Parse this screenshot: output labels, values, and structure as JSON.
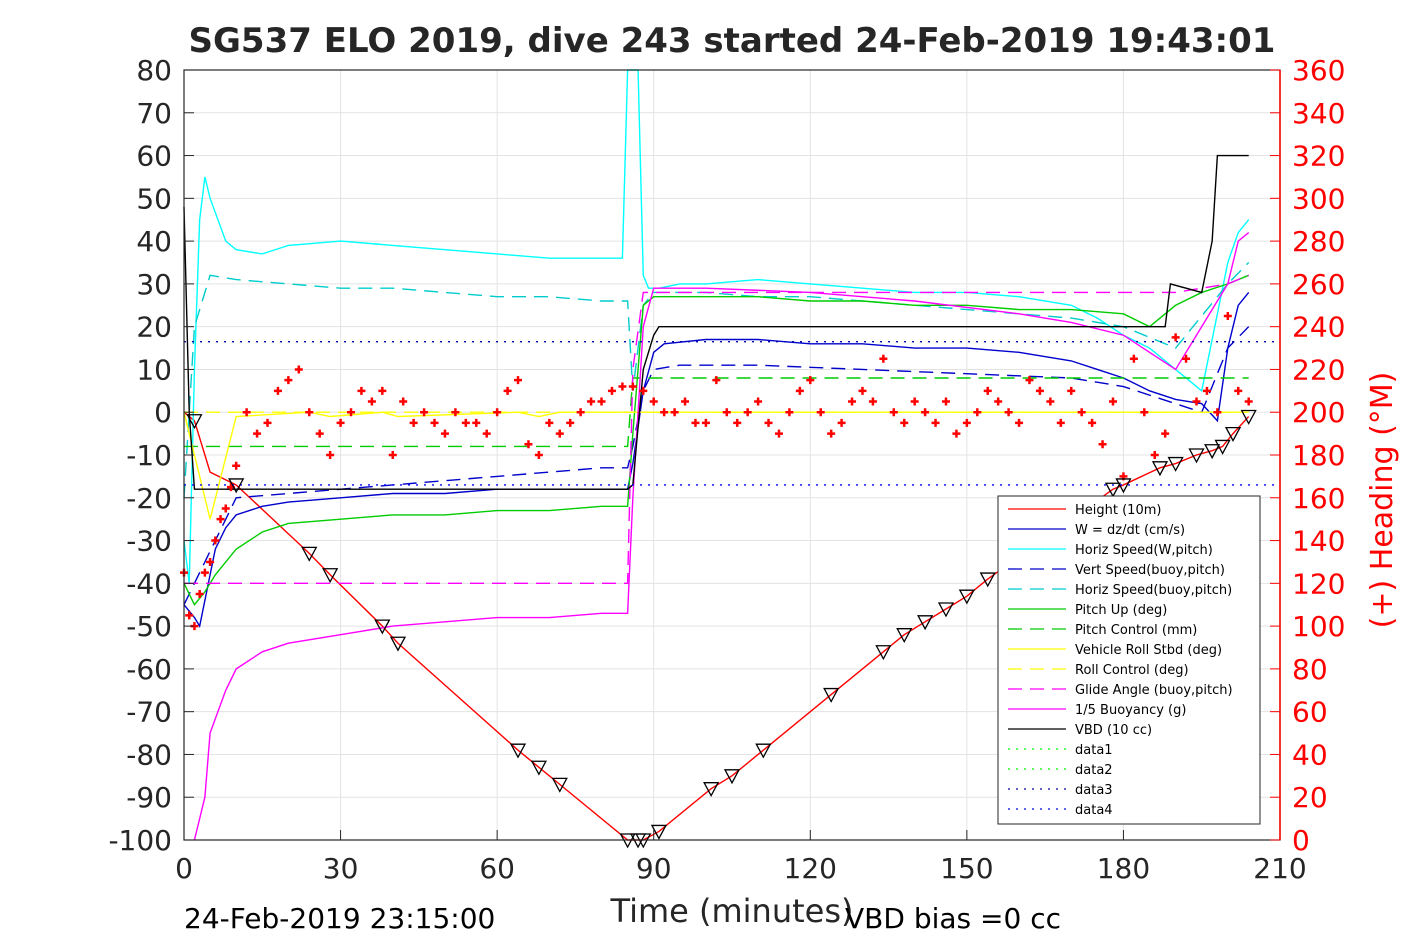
{
  "chart_data": {
    "type": "line",
    "title": "SG537 ELO 2019, dive 243 started 24-Feb-2019 19:43:01",
    "xlabel": "Time (minutes)",
    "ylabel_right": "(+) Heading (°M)",
    "xlim": [
      0,
      210
    ],
    "ylim": [
      -100,
      80
    ],
    "ylim_right": [
      0,
      360
    ],
    "x_ticks": [
      "0",
      "30",
      "60",
      "90",
      "120",
      "150",
      "180",
      "210"
    ],
    "y_ticks": [
      "80",
      "70",
      "60",
      "50",
      "40",
      "30",
      "20",
      "10",
      "0",
      "-10",
      "-20",
      "-30",
      "-40",
      "-50",
      "-60",
      "-70",
      "-80",
      "-90",
      "-100"
    ],
    "y_ticks_right": [
      "360",
      "340",
      "320",
      "300",
      "280",
      "260",
      "240",
      "220",
      "200",
      "180",
      "160",
      "140",
      "120",
      "100",
      "80",
      "60",
      "40",
      "20",
      "0"
    ],
    "grid": true,
    "legend_position": "bottom-right",
    "footer_left": "24-Feb-2019 23:15:00",
    "footer_right": "VBD bias =0 cc",
    "series": [
      {
        "name": "Height (10m)",
        "color": "#ff0000",
        "style": "solid",
        "x": [
          0,
          2,
          5,
          10,
          24,
          28,
          38,
          41,
          64,
          68,
          72,
          85,
          87,
          88,
          91,
          101,
          105,
          111,
          124,
          134,
          138,
          142,
          146,
          150,
          154,
          178,
          180,
          187,
          190,
          194,
          197,
          199,
          201,
          204
        ],
        "y": [
          0,
          -2,
          -14,
          -17,
          -33,
          -38,
          -50,
          -54,
          -79,
          -83,
          -87,
          -100,
          -100,
          -100,
          -98,
          -88,
          -85,
          -79,
          -66,
          -56,
          -52,
          -49,
          -46,
          -43,
          -39,
          -18,
          -17,
          -13,
          -12,
          -10,
          -9,
          -8,
          -5,
          -1
        ]
      },
      {
        "name": "W = dz/dt (cm/s)",
        "color": "#0000cc",
        "style": "solid",
        "x": [
          0,
          2,
          3,
          4,
          5,
          6,
          8,
          10,
          15,
          20,
          30,
          40,
          50,
          60,
          70,
          80,
          85,
          86,
          88,
          90,
          92,
          100,
          110,
          120,
          130,
          140,
          150,
          160,
          170,
          175,
          180,
          185,
          190,
          195,
          198,
          200,
          202,
          204
        ],
        "y": [
          -45,
          -48,
          -50,
          -44,
          -38,
          -32,
          -27,
          -24,
          -22,
          -21,
          -20,
          -19,
          -19,
          -18,
          -18,
          -18,
          -18,
          -12,
          5,
          14,
          16,
          17,
          17,
          16,
          16,
          15,
          15,
          14,
          12,
          10,
          8,
          5,
          3,
          2,
          -2,
          15,
          25,
          28
        ]
      },
      {
        "name": "Horiz Speed(W,pitch)",
        "color": "#00ffff",
        "style": "solid",
        "x": [
          0,
          1,
          2,
          3,
          4,
          5,
          8,
          10,
          15,
          20,
          30,
          40,
          50,
          60,
          70,
          80,
          84,
          85,
          86,
          87,
          88,
          89,
          91,
          95,
          100,
          110,
          120,
          130,
          140,
          150,
          160,
          170,
          175,
          180,
          185,
          190,
          195,
          200,
          202,
          204
        ],
        "y": [
          -30,
          -40,
          10,
          45,
          55,
          50,
          40,
          38,
          37,
          39,
          40,
          39,
          38,
          37,
          36,
          36,
          36,
          80,
          80,
          80,
          32,
          29,
          29,
          30,
          30,
          31,
          30,
          29,
          28,
          28,
          27,
          25,
          22,
          18,
          15,
          10,
          5,
          35,
          42,
          45
        ]
      },
      {
        "name": "Vert Speed(buoy,pitch)",
        "color": "#0000cc",
        "style": "dashed",
        "x": [
          0,
          10,
          20,
          40,
          60,
          80,
          85,
          86,
          88,
          90,
          95,
          110,
          130,
          150,
          170,
          180,
          185,
          190,
          195,
          200,
          204
        ],
        "y": [
          -45,
          -20,
          -19,
          -17,
          -15,
          -13,
          -13,
          -8,
          5,
          10,
          11,
          11,
          10,
          9,
          8,
          6,
          4,
          2,
          0,
          15,
          20
        ]
      },
      {
        "name": "Horiz Speed(buoy,pitch)",
        "color": "#00cccc",
        "style": "dashed",
        "x": [
          0,
          2,
          5,
          10,
          20,
          30,
          40,
          50,
          60,
          70,
          80,
          85,
          86,
          88,
          90,
          100,
          110,
          120,
          130,
          140,
          150,
          160,
          170,
          180,
          190,
          200,
          204
        ],
        "y": [
          -20,
          20,
          32,
          31,
          30,
          29,
          29,
          28,
          27,
          27,
          26,
          26,
          5,
          25,
          28,
          28,
          27,
          27,
          26,
          25,
          24,
          23,
          22,
          20,
          15,
          30,
          35
        ]
      },
      {
        "name": "Pitch Up (deg)",
        "color": "#00cc00",
        "style": "solid",
        "x": [
          0,
          2,
          4,
          6,
          10,
          15,
          20,
          30,
          40,
          50,
          60,
          70,
          80,
          85,
          86,
          88,
          90,
          100,
          110,
          120,
          130,
          140,
          150,
          160,
          170,
          180,
          185,
          190,
          195,
          200,
          204
        ],
        "y": [
          -40,
          -45,
          -42,
          -38,
          -32,
          -28,
          -26,
          -25,
          -24,
          -24,
          -23,
          -23,
          -22,
          -22,
          -5,
          25,
          27,
          27,
          27,
          26,
          26,
          25,
          25,
          24,
          24,
          23,
          20,
          25,
          28,
          30,
          32
        ]
      },
      {
        "name": "Pitch Control (mm)",
        "color": "#00cc00",
        "style": "dashed",
        "x": [
          0,
          85,
          86,
          204
        ],
        "y": [
          -8,
          -8,
          8,
          8
        ]
      },
      {
        "name": "Vehicle Roll Stbd (deg)",
        "color": "#ffff00",
        "style": "solid",
        "x": [
          0,
          5,
          10,
          24,
          28,
          38,
          41,
          64,
          68,
          72,
          85,
          88,
          91,
          101,
          105,
          111,
          124,
          134,
          138,
          142,
          146,
          150,
          154,
          178,
          180,
          187,
          190,
          194,
          197,
          199,
          201,
          204
        ],
        "y": [
          0,
          -25,
          -1,
          0,
          -1,
          0,
          -1,
          0,
          -1,
          0,
          0,
          0,
          0,
          0,
          0,
          0,
          0,
          0,
          0,
          0,
          0,
          0,
          0,
          0,
          0,
          0,
          0,
          0,
          0,
          0,
          0,
          0
        ]
      },
      {
        "name": "Roll Control (deg)",
        "color": "#ffff00",
        "style": "dashed",
        "x": [
          0,
          85,
          86,
          204
        ],
        "y": [
          0,
          0,
          0,
          0
        ]
      },
      {
        "name": "Glide Angle (buoy,pitch)",
        "color": "#ff00ff",
        "style": "dashed",
        "x": [
          0,
          85,
          86,
          88,
          90,
          100,
          120,
          140,
          160,
          180,
          190,
          200,
          204
        ],
        "y": [
          -40,
          -40,
          10,
          28,
          28,
          28,
          28,
          28,
          28,
          28,
          28,
          30,
          32
        ]
      },
      {
        "name": "1/5 Buoyancy (g)",
        "color": "#ff00ff",
        "style": "solid",
        "x": [
          2,
          3,
          4,
          5,
          8,
          10,
          15,
          20,
          30,
          40,
          50,
          60,
          70,
          80,
          85,
          86,
          88,
          90,
          100,
          120,
          140,
          160,
          170,
          180,
          185,
          190,
          195,
          200,
          202,
          204
        ],
        "y": [
          -100,
          -95,
          -90,
          -75,
          -65,
          -60,
          -56,
          -54,
          -52,
          -50,
          -49,
          -48,
          -48,
          -47,
          -47,
          -20,
          20,
          29,
          29,
          28,
          26,
          23,
          21,
          18,
          14,
          10,
          20,
          30,
          40,
          42
        ]
      },
      {
        "name": "VBD (10 cc)",
        "color": "#000000",
        "style": "solid",
        "x": [
          0,
          1,
          2,
          85,
          86,
          88,
          90,
          91,
          188,
          189,
          195,
          197,
          198,
          204
        ],
        "y": [
          48,
          0,
          -18,
          -18,
          -17,
          10,
          18,
          20,
          20,
          30,
          28,
          40,
          60,
          60
        ]
      },
      {
        "name": "data1",
        "color": "#00ff00",
        "style": "dotted",
        "x": [],
        "y": []
      },
      {
        "name": "data2",
        "color": "#00ff00",
        "style": "dotted",
        "x": [],
        "y": []
      },
      {
        "name": "data3",
        "color": "#0000aa",
        "style": "dotted",
        "x": [
          0,
          210
        ],
        "y": [
          16.5,
          16.5
        ]
      },
      {
        "name": "data4",
        "color": "#0000ff",
        "style": "dotted",
        "x": [
          0,
          210
        ],
        "y": [
          -17,
          -17
        ]
      }
    ],
    "heading": {
      "color": "#ff0000",
      "marker": "+",
      "x": [
        0,
        1,
        2,
        3,
        4,
        5,
        6,
        7,
        8,
        9,
        10,
        12,
        14,
        16,
        18,
        20,
        22,
        24,
        26,
        28,
        30,
        32,
        34,
        36,
        38,
        40,
        42,
        44,
        46,
        48,
        50,
        52,
        54,
        56,
        58,
        60,
        62,
        64,
        66,
        68,
        70,
        72,
        74,
        76,
        78,
        80,
        82,
        84,
        86,
        88,
        90,
        92,
        94,
        96,
        98,
        100,
        102,
        104,
        106,
        108,
        110,
        112,
        114,
        116,
        118,
        120,
        122,
        124,
        126,
        128,
        130,
        132,
        134,
        136,
        138,
        140,
        142,
        144,
        146,
        148,
        150,
        152,
        154,
        156,
        158,
        160,
        162,
        164,
        166,
        168,
        170,
        172,
        174,
        176,
        178,
        180,
        182,
        184,
        186,
        188,
        190,
        192,
        194,
        196,
        198,
        200,
        202,
        204
      ],
      "y": [
        125,
        105,
        100,
        115,
        125,
        130,
        140,
        150,
        155,
        165,
        175,
        200,
        190,
        195,
        210,
        215,
        220,
        200,
        190,
        180,
        195,
        200,
        210,
        205,
        210,
        180,
        205,
        195,
        200,
        195,
        190,
        200,
        195,
        195,
        190,
        200,
        210,
        215,
        185,
        180,
        195,
        190,
        195,
        200,
        205,
        205,
        210,
        212,
        212,
        210,
        205,
        200,
        200,
        205,
        195,
        195,
        215,
        200,
        195,
        200,
        205,
        195,
        190,
        200,
        210,
        215,
        200,
        190,
        195,
        205,
        210,
        205,
        225,
        200,
        195,
        205,
        200,
        195,
        205,
        190,
        195,
        200,
        210,
        205,
        200,
        195,
        215,
        210,
        205,
        195,
        210,
        200,
        195,
        185,
        205,
        170,
        225,
        200,
        180,
        190,
        235,
        225,
        205,
        210,
        200,
        245,
        210,
        205
      ]
    },
    "markers": {
      "color": "#000000",
      "x": [
        2,
        10,
        24,
        28,
        38,
        41,
        64,
        68,
        72,
        85,
        87,
        88,
        91,
        101,
        105,
        111,
        124,
        134,
        138,
        142,
        146,
        150,
        154,
        178,
        180,
        187,
        190,
        194,
        197,
        199,
        201,
        204
      ],
      "y": [
        -2,
        -17,
        -33,
        -38,
        -50,
        -54,
        -79,
        -83,
        -87,
        -100,
        -100,
        -100,
        -98,
        -88,
        -85,
        -79,
        -66,
        -56,
        -52,
        -49,
        -46,
        -43,
        -39,
        -18,
        -17,
        -13,
        -12,
        -10,
        -9,
        -8,
        -5,
        -1
      ]
    }
  }
}
